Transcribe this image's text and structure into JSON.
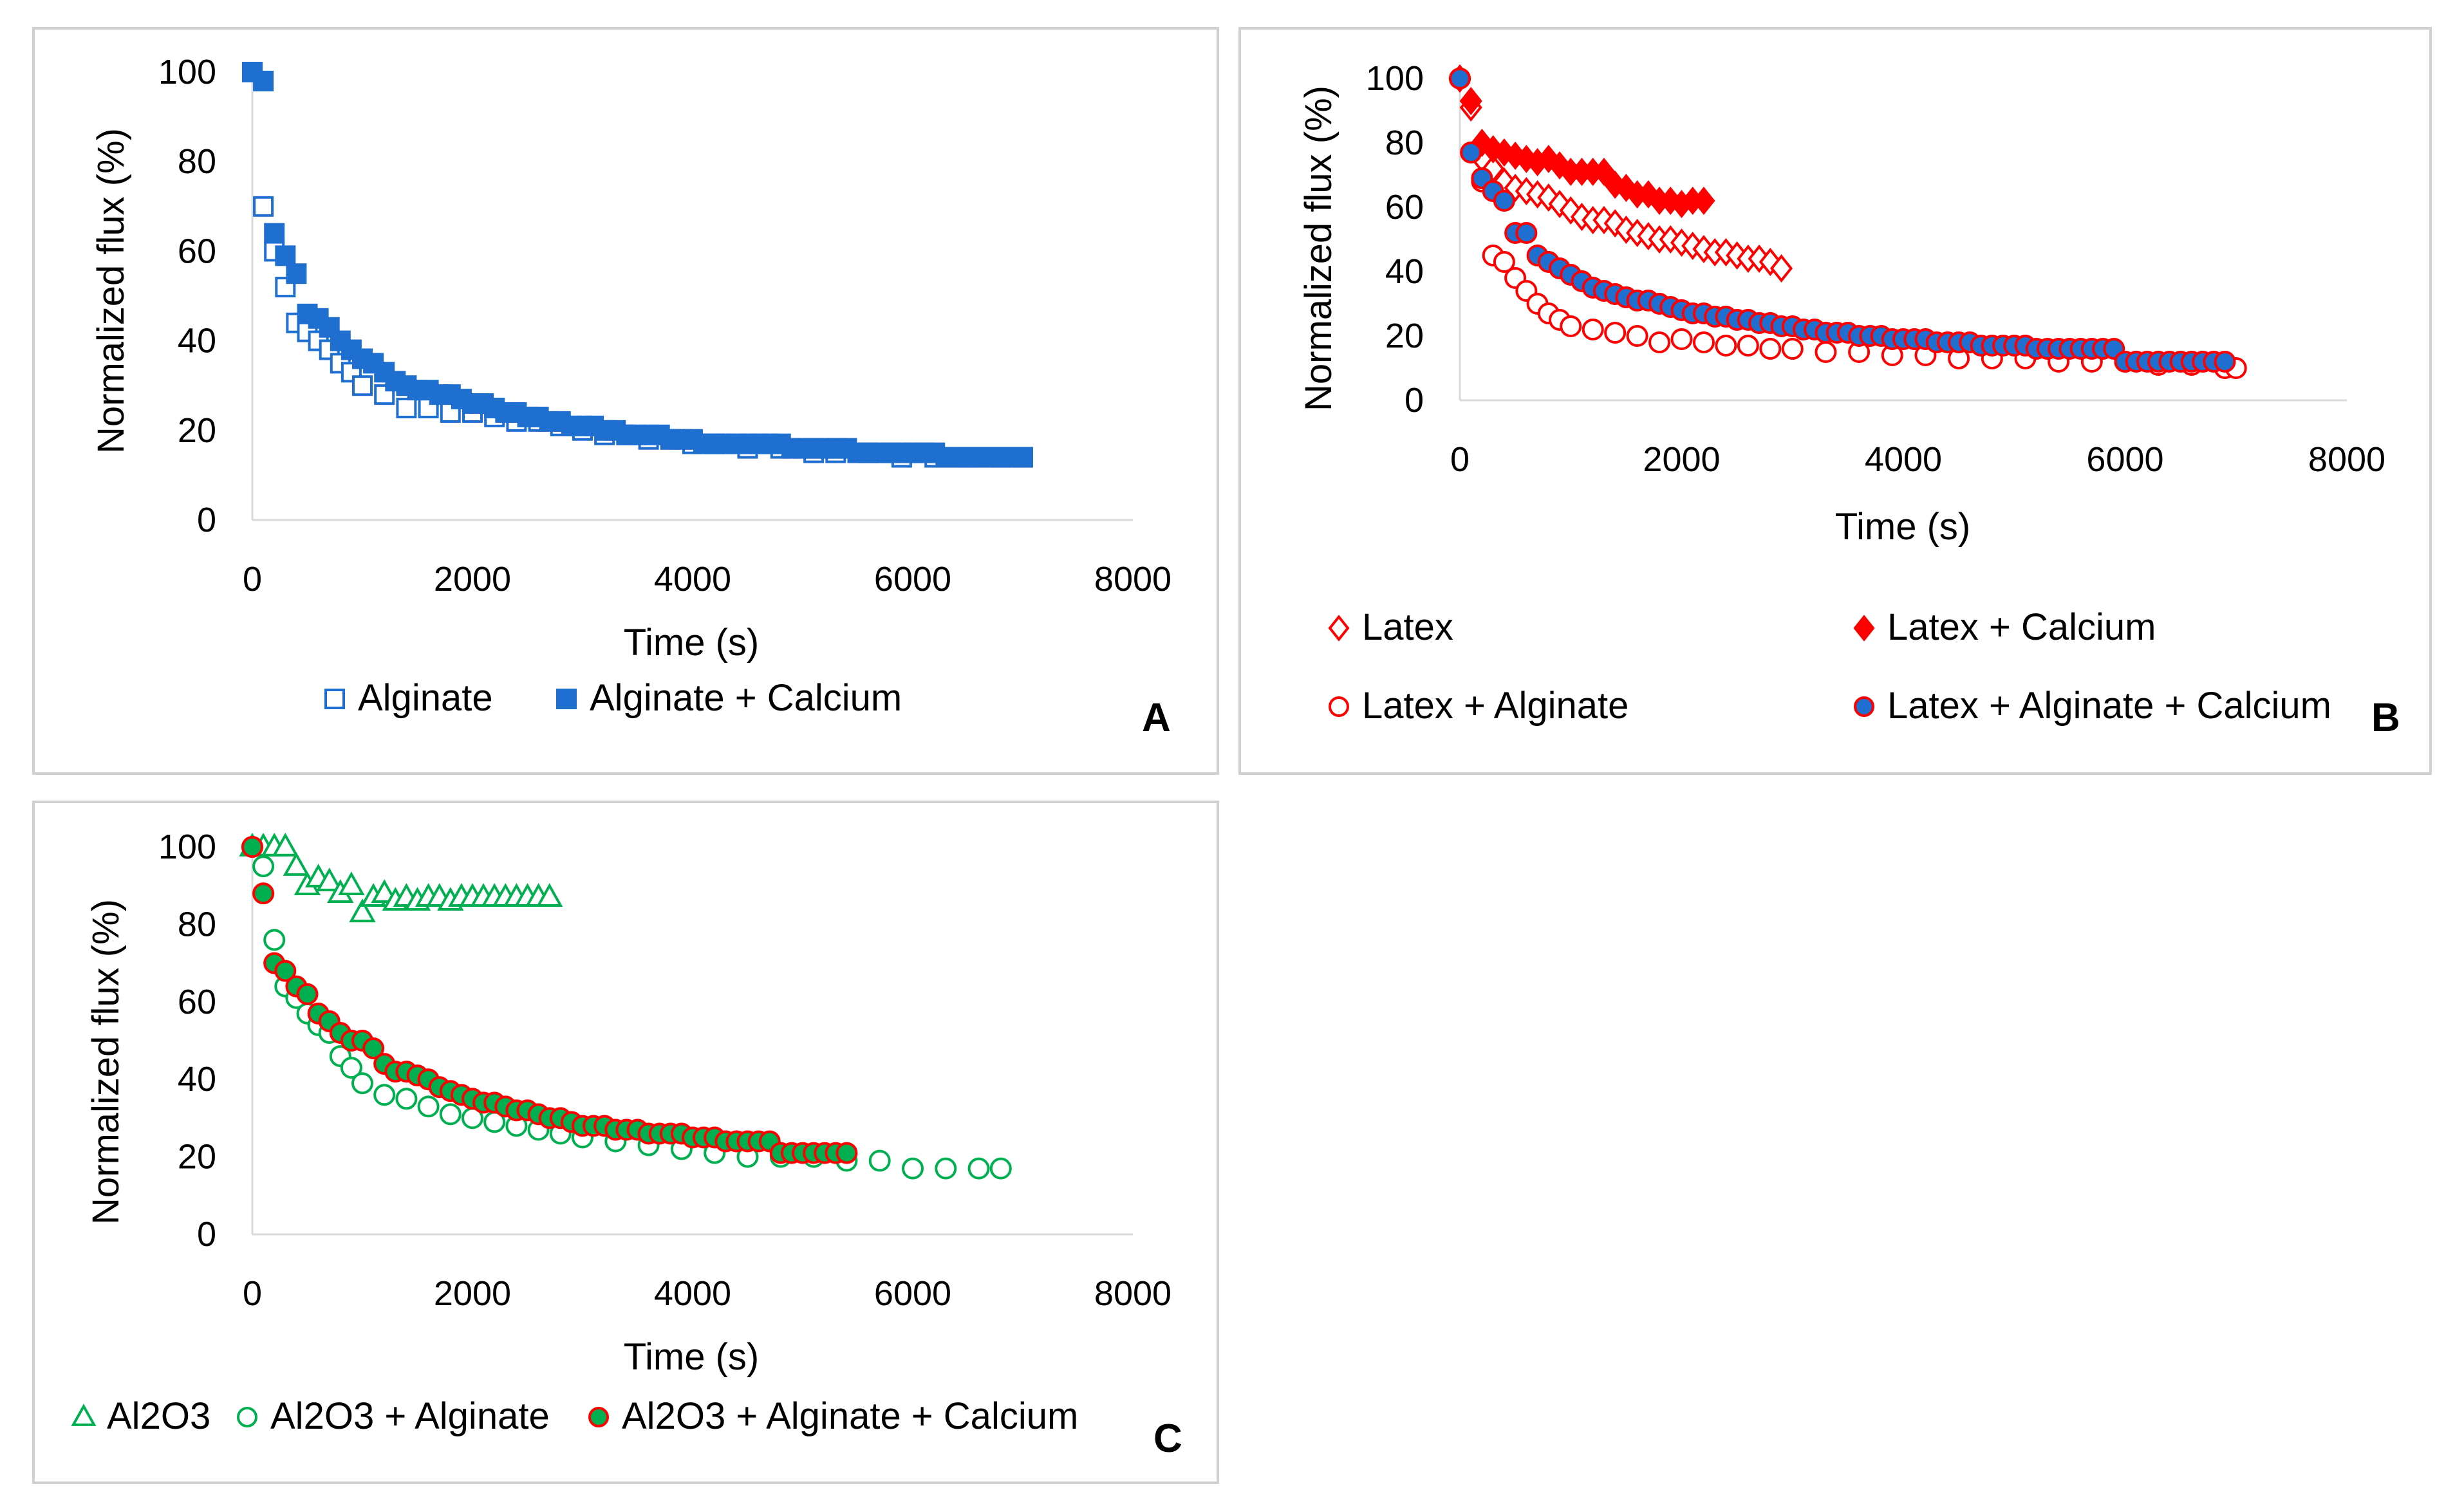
{
  "chart_data": [
    {
      "panel": "A",
      "type": "scatter",
      "xlabel": "Time (s)",
      "ylabel": "Normalized flux (%)",
      "xlim": [
        0,
        8000
      ],
      "ylim": [
        0,
        100
      ],
      "xticks": [
        "0",
        "2000",
        "4000",
        "6000",
        "8000"
      ],
      "yticks": [
        "0",
        "20",
        "40",
        "60",
        "80",
        "100"
      ],
      "grid": false,
      "legend": "bottom",
      "series": [
        {
          "name": "Alginate",
          "marker": "square",
          "fill": "none",
          "stroke": "#1f6fd0",
          "x": [
            0,
            100,
            200,
            300,
            400,
            500,
            600,
            700,
            800,
            900,
            1000,
            1200,
            1400,
            1600,
            1800,
            2000,
            2200,
            2400,
            2600,
            2800,
            3000,
            3200,
            3400,
            3600,
            3800,
            4000,
            4200,
            4500,
            4800,
            5100,
            5300,
            5600,
            5900,
            6200,
            6500,
            6800,
            7000
          ],
          "y": [
            100,
            70,
            60,
            52,
            44,
            42,
            40,
            38,
            35,
            33,
            30,
            28,
            25,
            25,
            24,
            24,
            23,
            22,
            22,
            21,
            20,
            19,
            19,
            18,
            18,
            17,
            17,
            16,
            16,
            15,
            15,
            15,
            14,
            14,
            14,
            14,
            14
          ]
        },
        {
          "name": "Alginate + Calcium",
          "marker": "square",
          "fill": "#1f6fd0",
          "stroke": "#1f6fd0",
          "x": [
            0,
            100,
            200,
            300,
            400,
            500,
            600,
            700,
            800,
            900,
            1000,
            1100,
            1200,
            1300,
            1400,
            1500,
            1600,
            1700,
            1800,
            1900,
            2000,
            2100,
            2200,
            2300,
            2400,
            2500,
            2600,
            2700,
            2800,
            2900,
            3000,
            3100,
            3200,
            3300,
            3400,
            3500,
            3600,
            3700,
            3800,
            3900,
            4000,
            4100,
            4200,
            4300,
            4400,
            4500,
            4600,
            4700,
            4800,
            4900,
            5000,
            5100,
            5200,
            5300,
            5400,
            5500,
            5600,
            5700,
            5800,
            5900,
            6000,
            6100,
            6200,
            6300,
            6400,
            6500,
            6600,
            6700,
            6800,
            6900,
            7000
          ],
          "y": [
            100,
            98,
            64,
            59,
            55,
            46,
            45,
            43,
            40,
            38,
            36,
            35,
            33,
            31,
            30,
            29,
            29,
            28,
            28,
            27,
            26,
            26,
            25,
            24,
            24,
            23,
            23,
            22,
            22,
            21,
            21,
            21,
            20,
            20,
            19,
            19,
            19,
            19,
            18,
            18,
            18,
            17,
            17,
            17,
            17,
            17,
            17,
            17,
            17,
            16,
            16,
            16,
            16,
            16,
            16,
            15,
            15,
            15,
            15,
            15,
            15,
            15,
            15,
            14,
            14,
            14,
            14,
            14,
            14,
            14,
            14
          ]
        }
      ]
    },
    {
      "panel": "B",
      "type": "scatter",
      "xlabel": "Time (s)",
      "ylabel": "Normalized flux (%)",
      "xlim": [
        0,
        8000
      ],
      "ylim": [
        0,
        100
      ],
      "xticks": [
        "0",
        "2000",
        "4000",
        "6000",
        "8000"
      ],
      "yticks": [
        "0",
        "20",
        "40",
        "60",
        "80",
        "100"
      ],
      "grid": false,
      "legend": "bottom",
      "series": [
        {
          "name": "Latex",
          "marker": "diamond",
          "fill": "none",
          "stroke": "#ff0000",
          "x": [
            0,
            100,
            200,
            300,
            400,
            500,
            600,
            700,
            800,
            900,
            1000,
            1100,
            1200,
            1300,
            1400,
            1500,
            1600,
            1700,
            1800,
            1900,
            2000,
            2100,
            2200,
            2300,
            2400,
            2500,
            2600,
            2700,
            2800,
            2900
          ],
          "y": [
            100,
            91,
            75,
            72,
            68,
            66,
            65,
            64,
            63,
            61,
            59,
            57,
            56,
            56,
            55,
            53,
            52,
            51,
            50,
            50,
            49,
            48,
            47,
            46,
            46,
            45,
            44,
            44,
            43,
            41
          ]
        },
        {
          "name": "Latex + Calcium",
          "marker": "diamond",
          "fill": "#ff0000",
          "stroke": "#ff0000",
          "x": [
            0,
            100,
            200,
            300,
            400,
            500,
            600,
            700,
            800,
            900,
            1000,
            1100,
            1200,
            1300,
            1400,
            1500,
            1600,
            1700,
            1800,
            1900,
            2000,
            2100,
            2200
          ],
          "y": [
            100,
            93,
            80,
            78,
            77,
            76,
            75,
            74,
            75,
            73,
            71,
            71,
            71,
            71,
            67,
            66,
            64,
            64,
            62,
            62,
            61,
            62,
            62
          ]
        },
        {
          "name": "Latex + Alginate",
          "marker": "circle",
          "fill": "none",
          "stroke": "#ff0000",
          "x": [
            0,
            100,
            200,
            300,
            400,
            500,
            600,
            700,
            800,
            900,
            1000,
            1200,
            1400,
            1600,
            1800,
            2000,
            2200,
            2400,
            2600,
            2800,
            3000,
            3300,
            3600,
            3900,
            4200,
            4500,
            4800,
            5100,
            5400,
            5700,
            6000,
            6300,
            6600,
            6900,
            7000
          ],
          "y": [
            100,
            77,
            68,
            45,
            43,
            38,
            34,
            30,
            27,
            25,
            23,
            22,
            21,
            20,
            18,
            19,
            18,
            17,
            17,
            16,
            16,
            15,
            15,
            14,
            14,
            13,
            13,
            13,
            12,
            12,
            12,
            11,
            11,
            10,
            10
          ]
        },
        {
          "name": "Latex + Alginate + Calcium",
          "marker": "circle",
          "fill": "#1f6fd0",
          "stroke": "#ff0000",
          "x": [
            0,
            100,
            200,
            300,
            400,
            500,
            600,
            700,
            800,
            900,
            1000,
            1100,
            1200,
            1300,
            1400,
            1500,
            1600,
            1700,
            1800,
            1900,
            2000,
            2100,
            2200,
            2300,
            2400,
            2500,
            2600,
            2700,
            2800,
            2900,
            3000,
            3100,
            3200,
            3300,
            3400,
            3500,
            3600,
            3700,
            3800,
            3900,
            4000,
            4100,
            4200,
            4300,
            4400,
            4500,
            4600,
            4700,
            4800,
            4900,
            5000,
            5100,
            5200,
            5300,
            5400,
            5500,
            5600,
            5700,
            5800,
            5900,
            6000,
            6100,
            6200,
            6300,
            6400,
            6500,
            6600,
            6700,
            6800,
            6900
          ],
          "y": [
            100,
            77,
            69,
            65,
            62,
            52,
            52,
            45,
            43,
            41,
            39,
            37,
            35,
            34,
            33,
            32,
            31,
            31,
            30,
            29,
            28,
            27,
            27,
            26,
            26,
            25,
            25,
            24,
            24,
            23,
            23,
            22,
            22,
            21,
            21,
            21,
            20,
            20,
            20,
            19,
            19,
            19,
            19,
            18,
            18,
            18,
            18,
            17,
            17,
            17,
            17,
            17,
            16,
            16,
            16,
            16,
            16,
            16,
            16,
            16,
            12,
            12,
            12,
            12,
            12,
            12,
            12,
            12,
            12,
            12
          ]
        }
      ]
    },
    {
      "panel": "C",
      "type": "scatter",
      "xlabel": "Time (s)",
      "ylabel": "Normalized flux (%)",
      "xlim": [
        0,
        8000
      ],
      "ylim": [
        0,
        100
      ],
      "xticks": [
        "0",
        "2000",
        "4000",
        "6000",
        "8000"
      ],
      "yticks": [
        "0",
        "20",
        "40",
        "60",
        "80",
        "100"
      ],
      "grid": false,
      "legend": "bottom",
      "series": [
        {
          "name": "Al2O3",
          "marker": "triangle",
          "fill": "none",
          "stroke": "#00b050",
          "x": [
            0,
            100,
            200,
            300,
            400,
            500,
            600,
            700,
            800,
            900,
            1000,
            1100,
            1200,
            1300,
            1400,
            1500,
            1600,
            1700,
            1800,
            1900,
            2000,
            2100,
            2200,
            2300,
            2400,
            2500,
            2600,
            2700
          ],
          "y": [
            100,
            100,
            100,
            100,
            95,
            90,
            92,
            91,
            88,
            90,
            83,
            87,
            88,
            86,
            87,
            86,
            87,
            87,
            86,
            87,
            87,
            87,
            87,
            87,
            87,
            87,
            87,
            87
          ]
        },
        {
          "name": "Al2O3 + Alginate",
          "marker": "circle",
          "fill": "none",
          "stroke": "#00b050",
          "x": [
            0,
            100,
            200,
            300,
            400,
            500,
            600,
            700,
            800,
            900,
            1000,
            1200,
            1400,
            1600,
            1800,
            2000,
            2200,
            2400,
            2600,
            2800,
            3000,
            3300,
            3600,
            3900,
            4200,
            4500,
            4800,
            5100,
            5400,
            5700,
            6000,
            6300,
            6600,
            6800
          ],
          "y": [
            100,
            95,
            76,
            64,
            61,
            57,
            54,
            52,
            46,
            43,
            39,
            36,
            35,
            33,
            31,
            30,
            29,
            28,
            27,
            26,
            25,
            24,
            23,
            22,
            21,
            20,
            20,
            20,
            19,
            19,
            17,
            17,
            17,
            17
          ]
        },
        {
          "name": "Al2O3 + Alginate + Calcium",
          "marker": "circle",
          "fill": "#00b050",
          "stroke": "#ff0000",
          "x": [
            0,
            100,
            200,
            300,
            400,
            500,
            600,
            700,
            800,
            900,
            1000,
            1100,
            1200,
            1300,
            1400,
            1500,
            1600,
            1700,
            1800,
            1900,
            2000,
            2100,
            2200,
            2300,
            2400,
            2500,
            2600,
            2700,
            2800,
            2900,
            3000,
            3100,
            3200,
            3300,
            3400,
            3500,
            3600,
            3700,
            3800,
            3900,
            4000,
            4100,
            4200,
            4300,
            4400,
            4500,
            4600,
            4700,
            4800,
            4900,
            5000,
            5100,
            5200,
            5300,
            5400
          ],
          "y": [
            100,
            88,
            70,
            68,
            64,
            62,
            57,
            55,
            52,
            50,
            50,
            48,
            44,
            42,
            42,
            41,
            40,
            38,
            37,
            36,
            35,
            34,
            34,
            33,
            32,
            32,
            31,
            30,
            30,
            29,
            28,
            28,
            28,
            27,
            27,
            27,
            26,
            26,
            26,
            26,
            25,
            25,
            25,
            24,
            24,
            24,
            24,
            24,
            21,
            21,
            21,
            21,
            21,
            21,
            21
          ]
        }
      ]
    }
  ]
}
